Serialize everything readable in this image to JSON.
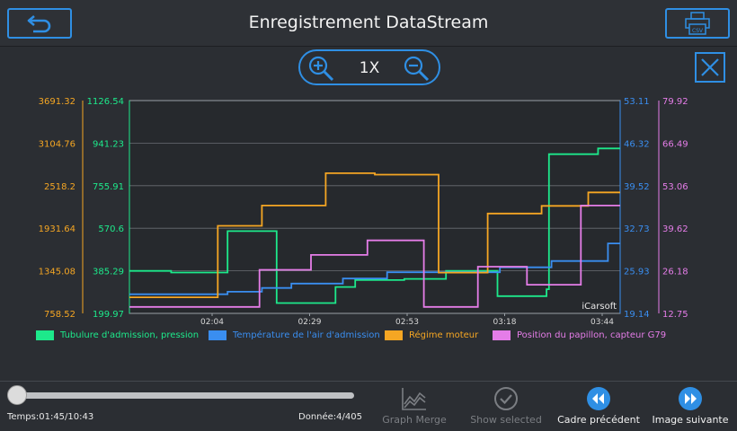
{
  "header": {
    "title": "Enregistrement DataStream",
    "back_icon": "back-arrow-icon",
    "csv_icon": "printer-csv-icon",
    "csv_text": "CSV"
  },
  "zoom": {
    "level": "1X"
  },
  "colors": {
    "accent": "#2f8fe4",
    "s1": "#1de98b",
    "s2": "#3a8ef0",
    "s3": "#f5a623",
    "s4": "#e57de8"
  },
  "chart_data": {
    "type": "line",
    "watermark": "iCarsoft",
    "x_ticks": [
      "02:04",
      "02:29",
      "02:53",
      "03:18",
      "03:44"
    ],
    "axes": [
      {
        "side": "left-outer",
        "series": 2,
        "ticks": [
          "3691.32",
          "3104.76",
          "2518.2",
          "1931.64",
          "1345.08",
          "758.52"
        ],
        "min": 758.52,
        "max": 3691.32
      },
      {
        "side": "left-inner",
        "series": 0,
        "ticks": [
          "1126.54",
          "941.23",
          "755.91",
          "570.6",
          "385.29",
          "199.97"
        ],
        "min": 199.97,
        "max": 1126.54
      },
      {
        "side": "right-inner",
        "series": 1,
        "ticks": [
          "53.11",
          "46.32",
          "39.52",
          "32.73",
          "25.93",
          "19.14"
        ],
        "min": 19.14,
        "max": 53.11
      },
      {
        "side": "right-outer",
        "series": 3,
        "ticks": [
          "79.92",
          "66.49",
          "53.06",
          "39.62",
          "26.18",
          "12.75"
        ],
        "min": 12.75,
        "max": 79.92
      }
    ],
    "series": [
      {
        "name": "Tubulure d'admission, pression",
        "points": [
          [
            0,
            385
          ],
          [
            0.085,
            385
          ],
          [
            0.085,
            378
          ],
          [
            0.2,
            378
          ],
          [
            0.2,
            558
          ],
          [
            0.3,
            558
          ],
          [
            0.3,
            245
          ],
          [
            0.42,
            245
          ],
          [
            0.42,
            315
          ],
          [
            0.46,
            315
          ],
          [
            0.46,
            345
          ],
          [
            0.56,
            345
          ],
          [
            0.56,
            350
          ],
          [
            0.645,
            350
          ],
          [
            0.645,
            385
          ],
          [
            0.75,
            385
          ],
          [
            0.75,
            275
          ],
          [
            0.85,
            275
          ],
          [
            0.85,
            305
          ],
          [
            0.855,
            305
          ],
          [
            0.855,
            893
          ],
          [
            0.955,
            893
          ],
          [
            0.955,
            918
          ],
          [
            1,
            918
          ]
        ]
      },
      {
        "name": "Température de l'air d'admission",
        "points": [
          [
            0,
            22.2
          ],
          [
            0.2,
            22.2
          ],
          [
            0.2,
            22.6
          ],
          [
            0.27,
            22.6
          ],
          [
            0.27,
            23.2
          ],
          [
            0.33,
            23.2
          ],
          [
            0.33,
            23.9
          ],
          [
            0.435,
            23.9
          ],
          [
            0.435,
            24.7
          ],
          [
            0.525,
            24.7
          ],
          [
            0.525,
            25.7
          ],
          [
            0.755,
            25.7
          ],
          [
            0.755,
            26.5
          ],
          [
            0.86,
            26.5
          ],
          [
            0.86,
            27.5
          ],
          [
            0.975,
            27.5
          ],
          [
            0.975,
            30.3
          ],
          [
            1,
            30.3
          ]
        ]
      },
      {
        "name": "Régime moteur",
        "points": [
          [
            0,
            980
          ],
          [
            0.18,
            980
          ],
          [
            0.18,
            1965
          ],
          [
            0.27,
            1965
          ],
          [
            0.27,
            2245
          ],
          [
            0.4,
            2245
          ],
          [
            0.4,
            2690
          ],
          [
            0.5,
            2690
          ],
          [
            0.5,
            2670
          ],
          [
            0.63,
            2670
          ],
          [
            0.63,
            1320
          ],
          [
            0.73,
            1320
          ],
          [
            0.73,
            2135
          ],
          [
            0.84,
            2135
          ],
          [
            0.84,
            2240
          ],
          [
            0.935,
            2240
          ],
          [
            0.935,
            2425
          ],
          [
            1,
            2425
          ]
        ]
      },
      {
        "name": "Position du papillon, capteur G79",
        "points": [
          [
            0,
            14.8
          ],
          [
            0.265,
            14.8
          ],
          [
            0.265,
            26.5
          ],
          [
            0.37,
            26.5
          ],
          [
            0.37,
            31.2
          ],
          [
            0.485,
            31.2
          ],
          [
            0.485,
            35.8
          ],
          [
            0.6,
            35.8
          ],
          [
            0.6,
            14.8
          ],
          [
            0.71,
            14.8
          ],
          [
            0.71,
            27.5
          ],
          [
            0.81,
            27.5
          ],
          [
            0.81,
            21.8
          ],
          [
            0.92,
            21.8
          ],
          [
            0.92,
            46.8
          ],
          [
            1,
            46.8
          ]
        ]
      }
    ]
  },
  "legend": [
    {
      "label": "Tubulure d'admission, pression"
    },
    {
      "label": "Température de l'air d'admission"
    },
    {
      "label": "Régime moteur"
    },
    {
      "label": "Position du papillon, capteur G79"
    }
  ],
  "playback": {
    "time": "Temps:01:45/10:43",
    "data": "Donnée:4/405",
    "progress": 0.0
  },
  "tools": [
    {
      "label": "Graph Merge",
      "icon": "graph-merge-icon",
      "enabled": false
    },
    {
      "label": "Show selected",
      "icon": "check-circle-icon",
      "enabled": false
    },
    {
      "label": "Cadre précédent",
      "icon": "rewind-icon",
      "enabled": true
    },
    {
      "label": "Image suivante",
      "icon": "fast-forward-icon",
      "enabled": true
    }
  ]
}
